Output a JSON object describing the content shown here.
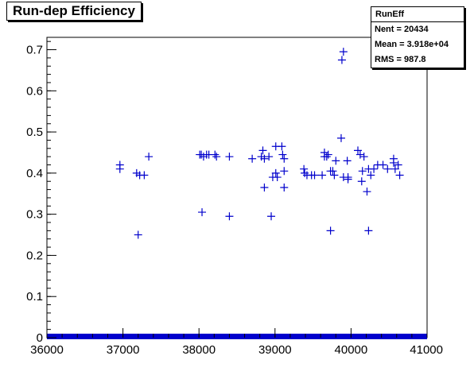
{
  "chart_data": {
    "type": "scatter",
    "title": "Run-dep Efficiency",
    "xlabel": "",
    "ylabel": "",
    "xlim": [
      36000,
      41000
    ],
    "ylim": [
      0,
      0.73
    ],
    "x_ticks": [
      36000,
      37000,
      38000,
      39000,
      40000,
      41000
    ],
    "y_ticks": [
      0,
      0.1,
      0.2,
      0.3,
      0.4,
      0.5,
      0.6,
      0.7
    ],
    "x_tick_labels": [
      "36000",
      "37000",
      "38000",
      "39000",
      "40000",
      "41000"
    ],
    "y_tick_labels": [
      "0",
      "0.1",
      "0.2",
      "0.3",
      "0.4",
      "0.5",
      "0.6",
      "0.7"
    ],
    "grid": false,
    "marker_color": "#0000cc",
    "legend": "none",
    "stats": {
      "title": "RunEff",
      "rows": [
        "Nent = 20434",
        "Mean  = 3.918e+04",
        "RMS   =  987.8"
      ]
    },
    "baseline": {
      "y": 0,
      "x_range": [
        36000,
        41000
      ]
    },
    "points": [
      [
        36960,
        0.42
      ],
      [
        36960,
        0.41
      ],
      [
        37180,
        0.4
      ],
      [
        37220,
        0.395
      ],
      [
        37280,
        0.395
      ],
      [
        37200,
        0.25
      ],
      [
        37340,
        0.44
      ],
      [
        38010,
        0.445
      ],
      [
        38030,
        0.445
      ],
      [
        38060,
        0.44
      ],
      [
        38100,
        0.445
      ],
      [
        38130,
        0.445
      ],
      [
        38210,
        0.445
      ],
      [
        38230,
        0.44
      ],
      [
        38040,
        0.305
      ],
      [
        38400,
        0.44
      ],
      [
        38400,
        0.295
      ],
      [
        38700,
        0.435
      ],
      [
        38820,
        0.44
      ],
      [
        38840,
        0.455
      ],
      [
        38860,
        0.435
      ],
      [
        38860,
        0.365
      ],
      [
        38920,
        0.44
      ],
      [
        38950,
        0.295
      ],
      [
        38970,
        0.39
      ],
      [
        39010,
        0.465
      ],
      [
        39010,
        0.4
      ],
      [
        39030,
        0.39
      ],
      [
        39090,
        0.465
      ],
      [
        39100,
        0.445
      ],
      [
        39120,
        0.435
      ],
      [
        39120,
        0.405
      ],
      [
        39120,
        0.365
      ],
      [
        39380,
        0.41
      ],
      [
        39390,
        0.4
      ],
      [
        39420,
        0.395
      ],
      [
        39480,
        0.395
      ],
      [
        39520,
        0.395
      ],
      [
        39620,
        0.395
      ],
      [
        39650,
        0.45
      ],
      [
        39650,
        0.44
      ],
      [
        39680,
        0.44
      ],
      [
        39700,
        0.445
      ],
      [
        39730,
        0.405
      ],
      [
        39730,
        0.26
      ],
      [
        39760,
        0.405
      ],
      [
        39780,
        0.395
      ],
      [
        39800,
        0.43
      ],
      [
        39870,
        0.485
      ],
      [
        39880,
        0.675
      ],
      [
        39900,
        0.695
      ],
      [
        39900,
        0.39
      ],
      [
        39950,
        0.43
      ],
      [
        39960,
        0.39
      ],
      [
        39960,
        0.385
      ],
      [
        40090,
        0.455
      ],
      [
        40120,
        0.445
      ],
      [
        40150,
        0.405
      ],
      [
        40170,
        0.44
      ],
      [
        40140,
        0.38
      ],
      [
        40210,
        0.355
      ],
      [
        40230,
        0.26
      ],
      [
        40260,
        0.395
      ],
      [
        40230,
        0.41
      ],
      [
        40300,
        0.41
      ],
      [
        40350,
        0.42
      ],
      [
        40420,
        0.42
      ],
      [
        40480,
        0.41
      ],
      [
        40560,
        0.435
      ],
      [
        40560,
        0.425
      ],
      [
        40580,
        0.41
      ],
      [
        40620,
        0.42
      ],
      [
        40640,
        0.395
      ]
    ]
  }
}
